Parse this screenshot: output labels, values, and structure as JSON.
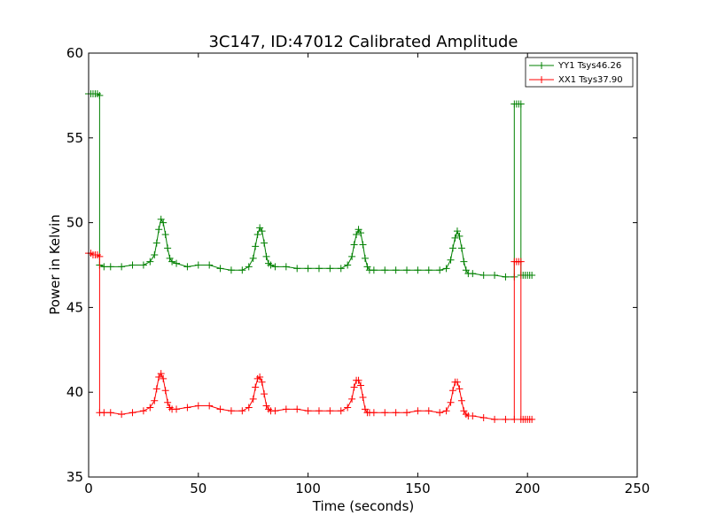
{
  "chart_data": {
    "type": "line",
    "title": "3C147, ID:47012 Calibrated Amplitude",
    "xlabel": "Time (seconds)",
    "ylabel": "Power in Kelvin",
    "xlim": [
      0,
      250
    ],
    "ylim": [
      35,
      60
    ],
    "xticks": [
      "0",
      "50",
      "100",
      "150",
      "200",
      "250"
    ],
    "yticks": [
      "35",
      "40",
      "45",
      "50",
      "55",
      "60"
    ],
    "grid": false,
    "legend_position": "top-right",
    "series": [
      {
        "name": "YY1 Tsys46.26",
        "color": "#008000",
        "marker": "+",
        "x": [
          0,
          1,
          2,
          3,
          4,
          5,
          5,
          7,
          10,
          15,
          20,
          25,
          28,
          30,
          31,
          32,
          33,
          34,
          35,
          36,
          37,
          38,
          40,
          45,
          50,
          55,
          60,
          65,
          70,
          73,
          75,
          76,
          77,
          78,
          79,
          80,
          81,
          82,
          83,
          85,
          90,
          95,
          100,
          105,
          110,
          115,
          118,
          120,
          121,
          122,
          123,
          124,
          125,
          126,
          127,
          128,
          130,
          135,
          140,
          145,
          150,
          155,
          160,
          163,
          165,
          166,
          167,
          168,
          169,
          170,
          171,
          172,
          173,
          175,
          180,
          185,
          190,
          194,
          194,
          195,
          196,
          197,
          197,
          198,
          199,
          200,
          201,
          202
        ],
        "y": [
          57.6,
          57.6,
          57.6,
          57.6,
          57.6,
          57.5,
          47.5,
          47.4,
          47.4,
          47.4,
          47.5,
          47.5,
          47.7,
          48.1,
          48.8,
          49.6,
          50.2,
          50.0,
          49.3,
          48.5,
          47.9,
          47.7,
          47.6,
          47.4,
          47.5,
          47.5,
          47.3,
          47.2,
          47.2,
          47.4,
          47.9,
          48.6,
          49.3,
          49.7,
          49.5,
          48.8,
          48.0,
          47.6,
          47.5,
          47.4,
          47.4,
          47.3,
          47.3,
          47.3,
          47.3,
          47.3,
          47.5,
          48.0,
          48.7,
          49.3,
          49.6,
          49.4,
          48.7,
          47.9,
          47.4,
          47.2,
          47.2,
          47.2,
          47.2,
          47.2,
          47.2,
          47.2,
          47.2,
          47.3,
          47.8,
          48.5,
          49.1,
          49.5,
          49.2,
          48.5,
          47.7,
          47.2,
          47.0,
          47.0,
          46.9,
          46.9,
          46.8,
          46.8,
          57.0,
          57.0,
          57.0,
          57.0,
          46.9,
          46.9,
          46.9,
          46.9,
          46.9,
          46.9
        ]
      },
      {
        "name": "XX1 Tsys37.90",
        "color": "#ff0000",
        "marker": "+",
        "x": [
          0,
          1,
          2,
          3,
          4,
          5,
          5,
          7,
          10,
          15,
          20,
          25,
          28,
          30,
          31,
          32,
          33,
          34,
          35,
          36,
          37,
          38,
          40,
          45,
          50,
          55,
          60,
          65,
          70,
          73,
          75,
          76,
          77,
          78,
          79,
          80,
          81,
          82,
          83,
          85,
          90,
          95,
          100,
          105,
          110,
          115,
          118,
          120,
          121,
          122,
          123,
          124,
          125,
          126,
          127,
          128,
          130,
          135,
          140,
          145,
          150,
          155,
          160,
          163,
          165,
          166,
          167,
          168,
          169,
          170,
          171,
          172,
          173,
          175,
          180,
          185,
          190,
          194,
          194,
          195,
          196,
          197,
          197,
          198,
          199,
          200,
          201,
          202
        ],
        "y": [
          48.2,
          48.2,
          48.1,
          48.1,
          48.1,
          48.0,
          38.8,
          38.8,
          38.8,
          38.7,
          38.8,
          38.9,
          39.1,
          39.5,
          40.2,
          40.9,
          41.1,
          40.8,
          40.1,
          39.4,
          39.1,
          39.0,
          39.0,
          39.1,
          39.2,
          39.2,
          39.0,
          38.9,
          38.9,
          39.1,
          39.6,
          40.3,
          40.8,
          40.9,
          40.6,
          39.9,
          39.2,
          39.0,
          38.9,
          38.9,
          39.0,
          39.0,
          38.9,
          38.9,
          38.9,
          38.9,
          39.1,
          39.6,
          40.3,
          40.7,
          40.7,
          40.4,
          39.7,
          39.0,
          38.8,
          38.8,
          38.8,
          38.8,
          38.8,
          38.8,
          38.9,
          38.9,
          38.8,
          38.9,
          39.4,
          40.1,
          40.6,
          40.6,
          40.2,
          39.5,
          38.9,
          38.7,
          38.6,
          38.6,
          38.5,
          38.4,
          38.4,
          38.4,
          47.7,
          47.7,
          47.7,
          47.7,
          38.4,
          38.4,
          38.4,
          38.4,
          38.4,
          38.4
        ]
      }
    ]
  }
}
